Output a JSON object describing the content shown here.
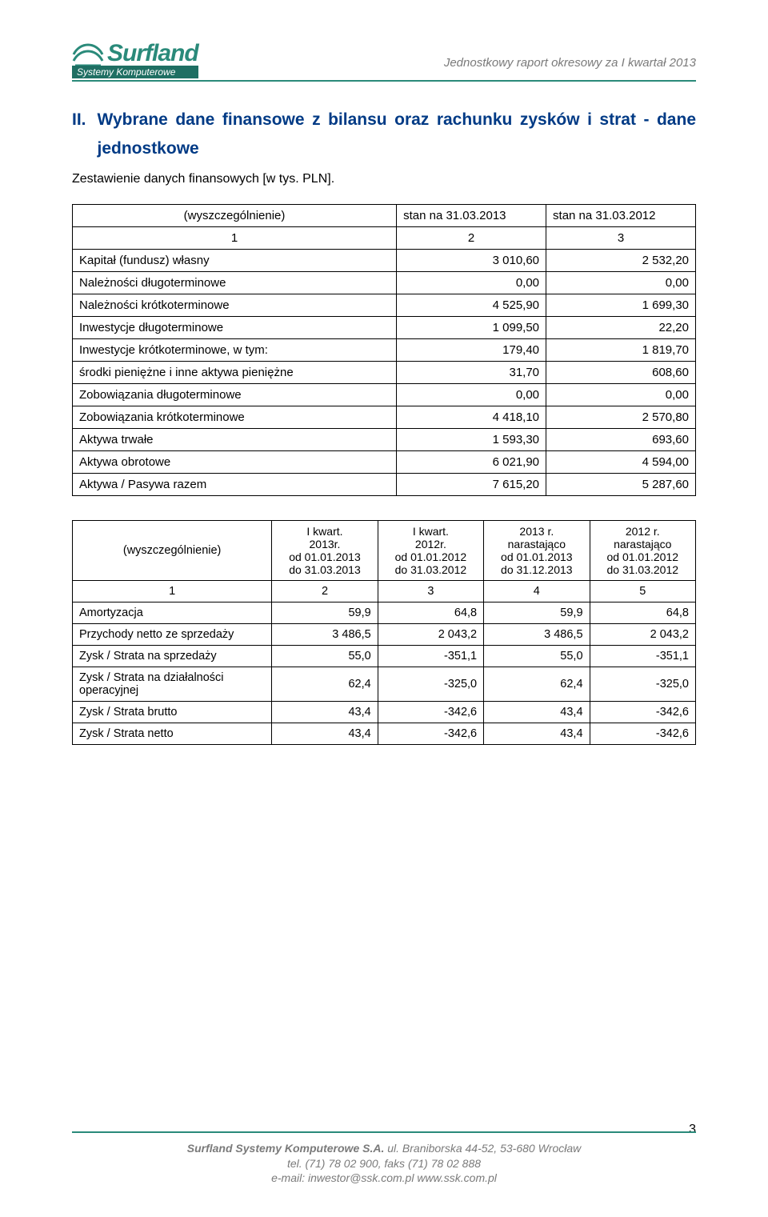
{
  "header": {
    "logo_main": "Surfland",
    "logo_sub": "Systemy Komputerowe",
    "caption": "Jednostkowy raport okresowy za I kwartał 2013"
  },
  "section": {
    "number": "II.",
    "title": "Wybrane dane finansowe z bilansu oraz rachunku zysków i strat - dane jednostkowe",
    "subheading": "Zestawienie danych finansowych [w tys. PLN]."
  },
  "table1": {
    "col_label": "(wyszczególnienie)",
    "col2": "stan na 31.03.2013",
    "col3": "stan na 31.03.2012",
    "idx1": "1",
    "idx2": "2",
    "idx3": "3",
    "rows": [
      {
        "label": "Kapitał (fundusz) własny",
        "v2": "3 010,60",
        "v3": "2 532,20"
      },
      {
        "label": "Należności długoterminowe",
        "v2": "0,00",
        "v3": "0,00"
      },
      {
        "label": "Należności krótkoterminowe",
        "v2": "4 525,90",
        "v3": "1 699,30"
      },
      {
        "label": "Inwestycje długoterminowe",
        "v2": "1 099,50",
        "v3": "22,20"
      },
      {
        "label": "Inwestycje krótkoterminowe, w tym:",
        "v2": "179,40",
        "v3": "1 819,70"
      },
      {
        "label": "środki pieniężne i inne aktywa pieniężne",
        "v2": "31,70",
        "v3": "608,60"
      },
      {
        "label": "Zobowiązania długoterminowe",
        "v2": "0,00",
        "v3": "0,00"
      },
      {
        "label": "Zobowiązania krótkoterminowe",
        "v2": "4 418,10",
        "v3": "2 570,80"
      },
      {
        "label": "Aktywa trwałe",
        "v2": "1 593,30",
        "v3": "693,60"
      },
      {
        "label": "Aktywa obrotowe",
        "v2": "6 021,90",
        "v3": "4 594,00"
      },
      {
        "label": "Aktywa / Pasywa  razem",
        "v2": "7 615,20",
        "v3": "5 287,60"
      }
    ]
  },
  "table2": {
    "col_label": "(wyszczególnienie)",
    "h2a": "I kwart.",
    "h2b": "2013r.",
    "h2c": "od 01.01.2013",
    "h2d": "do 31.03.2013",
    "h3a": "I kwart.",
    "h3b": "2012r.",
    "h3c": "od 01.01.2012",
    "h3d": "do 31.03.2012",
    "h4a": "2013 r.",
    "h4b": "narastająco",
    "h4c": "od 01.01.2013",
    "h4d": "do 31.12.2013",
    "h5a": "2012 r.",
    "h5b": "narastająco",
    "h5c": "od 01.01.2012",
    "h5d": "do 31.03.2012",
    "idx1": "1",
    "idx2": "2",
    "idx3": "3",
    "idx4": "4",
    "idx5": "5",
    "rows": [
      {
        "label": "Amortyzacja",
        "v2": "59,9",
        "v3": "64,8",
        "v4": "59,9",
        "v5": "64,8"
      },
      {
        "label": "Przychody netto ze sprzedaży",
        "v2": "3 486,5",
        "v3": "2 043,2",
        "v4": "3 486,5",
        "v5": "2 043,2"
      },
      {
        "label": "Zysk / Strata na sprzedaży",
        "v2": "55,0",
        "v3": "-351,1",
        "v4": "55,0",
        "v5": "-351,1"
      },
      {
        "label": "Zysk / Strata na działalności operacyjnej",
        "v2": "62,4",
        "v3": "-325,0",
        "v4": "62,4",
        "v5": "-325,0"
      },
      {
        "label": "Zysk / Strata brutto",
        "v2": "43,4",
        "v3": "-342,6",
        "v4": "43,4",
        "v5": "-342,6"
      },
      {
        "label": "Zysk / Strata netto",
        "v2": "43,4",
        "v3": "-342,6",
        "v4": "43,4",
        "v5": "-342,6"
      }
    ]
  },
  "footer": {
    "company": "Surfland Systemy Komputerowe S.A.",
    "addr": " ul. Braniborska 44-52, 53-680 Wrocław",
    "tel": "tel. (71) 78 02 900, faks (71) 78 02 888",
    "mail": "e-mail: inwestor@ssk.com.pl www.ssk.com.pl"
  },
  "page_number": "3",
  "colors": {
    "brand": "#2a8a7a",
    "title": "#003a85",
    "muted": "#7a7a7a",
    "text": "#000000",
    "bg": "#ffffff"
  },
  "fonts": {
    "body_size_pt": 11,
    "title_size_pt": 16,
    "caption_size_pt": 11
  }
}
